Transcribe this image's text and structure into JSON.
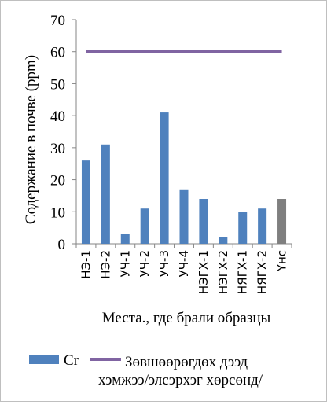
{
  "chart_data": {
    "type": "bar",
    "categories": [
      "НЭ-1",
      "НЭ-2",
      "УЧ-1",
      "УЧ-2",
      "УЧ-3",
      "УЧ-4",
      "НЭГХ-1",
      "НЭГХ-2",
      "НЯГХ-1",
      "НЯГХ-2",
      "Үнс"
    ],
    "series": [
      {
        "name": "Cr",
        "values": [
          26,
          31,
          3,
          11,
          41,
          17,
          14,
          2,
          10,
          11,
          14
        ],
        "color": "#4f81bd",
        "highlight_color": "#7f7f7f",
        "highlight_index": 10
      }
    ],
    "reference_line": {
      "name": "Зөвшөөрөгдөх дээд хэмжээ/элсэрхэг хөрсөнд/",
      "value": 60,
      "color": "#8064a2"
    },
    "xlabel": "Места., где брали образцы",
    "ylabel": "Содержание в почве (ppm)",
    "ylim": [
      0,
      70
    ],
    "yticks": [
      0,
      10,
      20,
      30,
      40,
      50,
      60,
      70
    ],
    "grid": false,
    "legend_position": "bottom"
  }
}
